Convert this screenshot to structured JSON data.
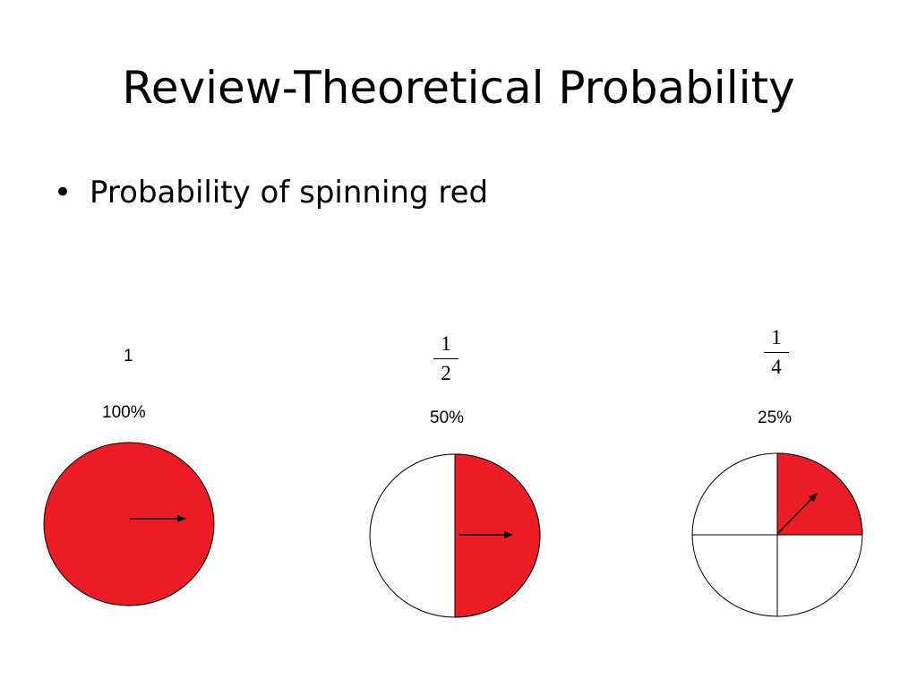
{
  "title": "Review-Theoretical Probability",
  "bullet": {
    "text": "Probability of spinning red"
  },
  "colors": {
    "red": "#ed1c24",
    "outline": "#000000",
    "background": "#ffffff"
  },
  "spinners": [
    {
      "fraction_label": "1",
      "percent_label": "100%",
      "red_fraction": 1
    },
    {
      "numerator": "1",
      "denominator": "2",
      "percent_label": "50%",
      "red_fraction": 0.5
    },
    {
      "numerator": "1",
      "denominator": "4",
      "percent_label": "25%",
      "red_fraction": 0.25
    }
  ]
}
